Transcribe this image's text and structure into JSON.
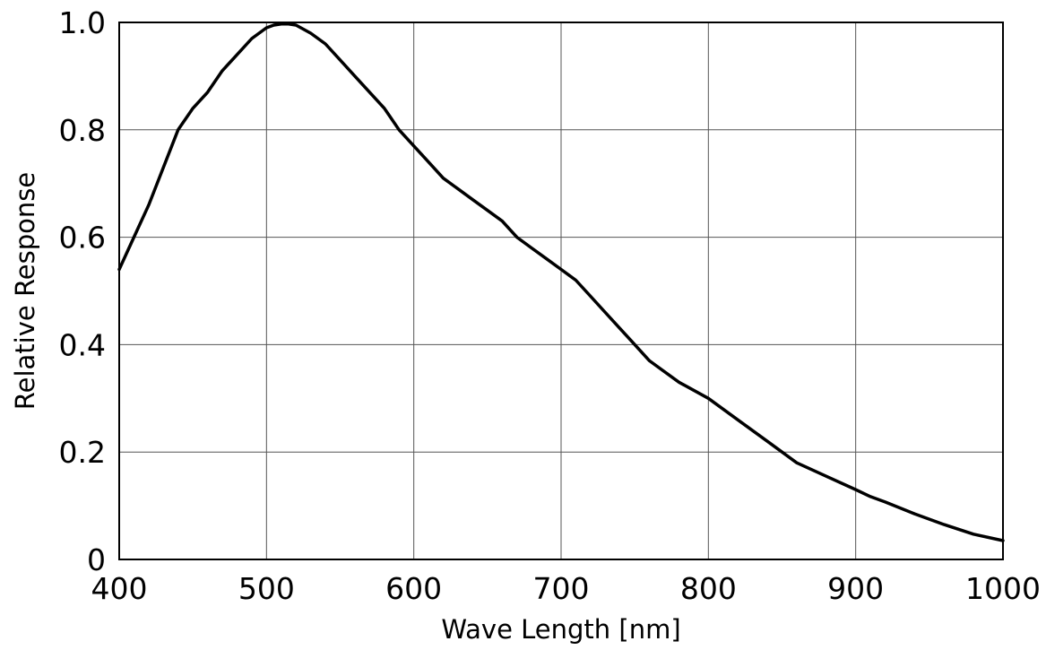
{
  "chart_data": {
    "type": "line",
    "title": "",
    "xlabel": "Wave Length [nm]",
    "ylabel": "Relative Response",
    "xlim": [
      400,
      1000
    ],
    "ylim": [
      0,
      1.0
    ],
    "x_ticks": [
      400,
      500,
      600,
      700,
      800,
      900,
      1000
    ],
    "x_tick_labels": [
      "400",
      "500",
      "600",
      "700",
      "800",
      "900",
      "1000"
    ],
    "y_ticks": [
      0,
      0.2,
      0.4,
      0.6,
      0.8,
      1.0
    ],
    "y_tick_labels": [
      "0",
      "0.2",
      "0.4",
      "0.6",
      "0.8",
      "1.0"
    ],
    "grid": true,
    "legend": "none",
    "colors": {
      "line": "#000000",
      "grid": "#555555",
      "frame": "#000000",
      "background": "#ffffff"
    },
    "series": [
      {
        "x": [
          400,
          410,
          420,
          430,
          440,
          450,
          460,
          470,
          480,
          490,
          500,
          505,
          510,
          515,
          520,
          530,
          540,
          550,
          560,
          570,
          580,
          590,
          600,
          610,
          620,
          630,
          640,
          650,
          660,
          670,
          680,
          690,
          700,
          710,
          720,
          730,
          740,
          750,
          760,
          765,
          780,
          800,
          820,
          840,
          850,
          860,
          880,
          900,
          910,
          920,
          940,
          960,
          980,
          1000
        ],
        "y": [
          0.54,
          0.6,
          0.66,
          0.73,
          0.8,
          0.84,
          0.87,
          0.91,
          0.94,
          0.97,
          0.99,
          0.995,
          0.997,
          0.997,
          0.995,
          0.98,
          0.96,
          0.93,
          0.9,
          0.87,
          0.84,
          0.8,
          0.77,
          0.74,
          0.71,
          0.69,
          0.67,
          0.65,
          0.63,
          0.6,
          0.58,
          0.56,
          0.54,
          0.52,
          0.49,
          0.46,
          0.43,
          0.4,
          0.37,
          0.36,
          0.33,
          0.3,
          0.26,
          0.22,
          0.2,
          0.18,
          0.155,
          0.13,
          0.117,
          0.107,
          0.085,
          0.065,
          0.047,
          0.035
        ]
      }
    ]
  }
}
